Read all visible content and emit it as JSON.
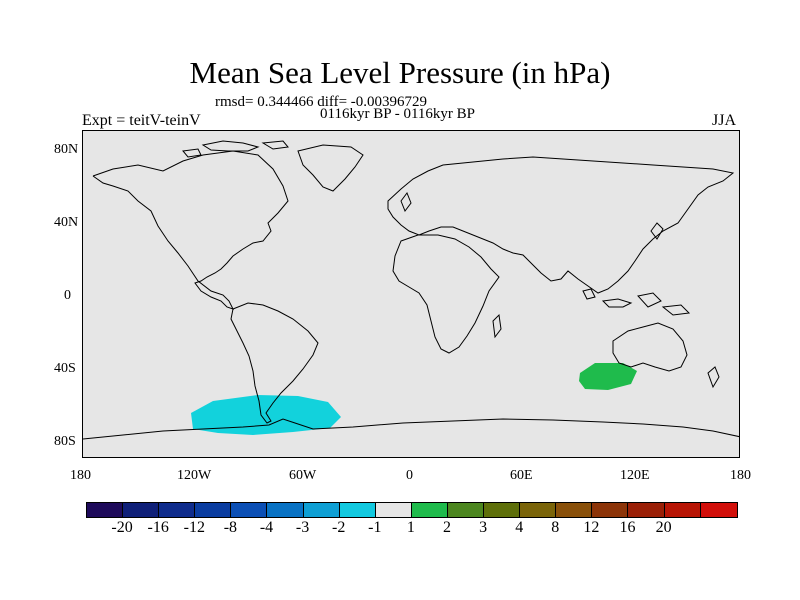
{
  "title": "Mean Sea Level Pressure (in hPa)",
  "stats": "rmsd= 0.344466 diff= -0.00396729",
  "subtitle": "0116kyr BP - 0116kyr BP",
  "expt": "Expt = teitV-teinV",
  "season": "JJA",
  "y_ticks": [
    "80N",
    "40N",
    "0",
    "40S",
    "80S"
  ],
  "x_ticks": [
    "180",
    "120W",
    "60W",
    "0",
    "60E",
    "120E",
    "180"
  ],
  "colorbar": {
    "colors": [
      "#1e0a5a",
      "#0f1f78",
      "#0f2c8c",
      "#0a3ca0",
      "#0b4fb5",
      "#0872c4",
      "#0e9fd4",
      "#12c9e0",
      "#e6e6e6",
      "#1fbb4c",
      "#4c861f",
      "#5e6f0a",
      "#7a6409",
      "#89500a",
      "#8c3408",
      "#9a1f06",
      "#b81505",
      "#d10f0a"
    ],
    "labels": [
      "-20",
      "-16",
      "-12",
      "-8",
      "-4",
      "-3",
      "-2",
      "-1",
      "1",
      "2",
      "3",
      "4",
      "8",
      "12",
      "16",
      "20"
    ]
  }
}
